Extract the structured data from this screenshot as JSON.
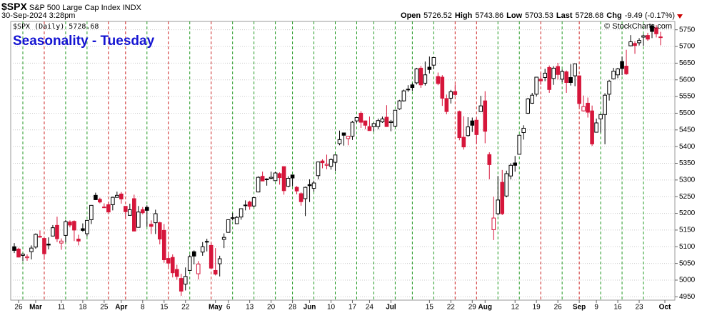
{
  "header": {
    "symbol": "$SPX",
    "description": "S&P 500 Large Cap Index",
    "exchange": "INDX",
    "timestamp": "30-Sep-2024 3:28pm",
    "stats": [
      {
        "label": "Open",
        "value": "5726.52"
      },
      {
        "label": "High",
        "value": "5743.86"
      },
      {
        "label": "Low",
        "value": "5703.53"
      },
      {
        "label": "Last",
        "value": "5728.68"
      },
      {
        "label": "Chg",
        "value": "-9.49 (-0.17%)"
      }
    ],
    "credit": "© StockCharts.com"
  },
  "chart_data": {
    "type": "candlestick",
    "title": "Seasonality - Tuesday",
    "legend": "$SPX (Daily) 5728.68",
    "up_color": "#000000",
    "down_color": "#d6163b",
    "tuesday_up_color": "#229922",
    "tuesday_down_color": "#cc2222",
    "x": [
      "2024-02-23",
      "2024-02-26",
      "2024-02-27",
      "2024-02-28",
      "2024-02-29",
      "2024-03-01",
      "2024-03-04",
      "2024-03-05",
      "2024-03-06",
      "2024-03-07",
      "2024-03-08",
      "2024-03-11",
      "2024-03-12",
      "2024-03-13",
      "2024-03-14",
      "2024-03-15",
      "2024-03-18",
      "2024-03-19",
      "2024-03-20",
      "2024-03-21",
      "2024-03-22",
      "2024-03-25",
      "2024-03-26",
      "2024-03-27",
      "2024-03-28",
      "2024-04-01",
      "2024-04-02",
      "2024-04-03",
      "2024-04-04",
      "2024-04-05",
      "2024-04-08",
      "2024-04-09",
      "2024-04-10",
      "2024-04-11",
      "2024-04-12",
      "2024-04-15",
      "2024-04-16",
      "2024-04-17",
      "2024-04-18",
      "2024-04-19",
      "2024-04-22",
      "2024-04-23",
      "2024-04-24",
      "2024-04-25",
      "2024-04-26",
      "2024-04-29",
      "2024-04-30",
      "2024-05-01",
      "2024-05-02",
      "2024-05-03",
      "2024-05-06",
      "2024-05-07",
      "2024-05-08",
      "2024-05-09",
      "2024-05-10",
      "2024-05-13",
      "2024-05-14",
      "2024-05-15",
      "2024-05-16",
      "2024-05-17",
      "2024-05-20",
      "2024-05-21",
      "2024-05-22",
      "2024-05-23",
      "2024-05-24",
      "2024-05-28",
      "2024-05-29",
      "2024-05-30",
      "2024-05-31",
      "2024-06-03",
      "2024-06-04",
      "2024-06-05",
      "2024-06-06",
      "2024-06-07",
      "2024-06-10",
      "2024-06-11",
      "2024-06-12",
      "2024-06-13",
      "2024-06-14",
      "2024-06-17",
      "2024-06-18",
      "2024-06-20",
      "2024-06-21",
      "2024-06-24",
      "2024-06-25",
      "2024-06-26",
      "2024-06-27",
      "2024-06-28",
      "2024-07-01",
      "2024-07-02",
      "2024-07-03",
      "2024-07-05",
      "2024-07-08",
      "2024-07-09",
      "2024-07-10",
      "2024-07-11",
      "2024-07-12",
      "2024-07-15",
      "2024-07-16",
      "2024-07-17",
      "2024-07-18",
      "2024-07-19",
      "2024-07-22",
      "2024-07-23",
      "2024-07-24",
      "2024-07-25",
      "2024-07-26",
      "2024-07-29",
      "2024-07-30",
      "2024-07-31",
      "2024-08-01",
      "2024-08-02",
      "2024-08-05",
      "2024-08-06",
      "2024-08-07",
      "2024-08-08",
      "2024-08-09",
      "2024-08-12",
      "2024-08-13",
      "2024-08-14",
      "2024-08-15",
      "2024-08-16",
      "2024-08-19",
      "2024-08-20",
      "2024-08-21",
      "2024-08-22",
      "2024-08-23",
      "2024-08-26",
      "2024-08-27",
      "2024-08-28",
      "2024-08-29",
      "2024-08-30",
      "2024-09-03",
      "2024-09-04",
      "2024-09-05",
      "2024-09-06",
      "2024-09-09",
      "2024-09-10",
      "2024-09-11",
      "2024-09-12",
      "2024-09-13",
      "2024-09-16",
      "2024-09-17",
      "2024-09-18",
      "2024-09-19",
      "2024-09-20",
      "2024-09-23",
      "2024-09-24",
      "2024-09-25",
      "2024-09-26",
      "2024-09-27",
      "2024-09-30"
    ],
    "open": [
      5100,
      5093,
      5074,
      5067,
      5085,
      5099,
      5131,
      5125,
      5108,
      5132,
      5164,
      5111,
      5134,
      5174,
      5176,
      5123,
      5154,
      5139,
      5181,
      5254,
      5242,
      5219,
      5226,
      5226,
      5248,
      5258,
      5221,
      5194,
      5244,
      5158,
      5211,
      5218,
      5167,
      5172,
      5172,
      5149,
      5065,
      5068,
      5032,
      5005,
      4988,
      5029,
      5085,
      5019,
      5084,
      5114,
      5104,
      5029,
      5049,
      5122,
      5143,
      5187,
      5169,
      5189,
      5225,
      5234,
      5222,
      5264,
      5311,
      5303,
      5305,
      5298,
      5319,
      5340,
      5281,
      5315,
      5278,
      5259,
      5244,
      5286,
      5275,
      5313,
      5357,
      5344,
      5341,
      5353,
      5409,
      5441,
      5424,
      5431,
      5477,
      5500,
      5477,
      5460,
      5460,
      5460,
      5474,
      5488,
      5472,
      5461,
      5513,
      5537,
      5572,
      5585,
      5591,
      5635,
      5590,
      5638,
      5644,
      5610,
      5608,
      5544,
      5545,
      5565,
      5505,
      5428,
      5433,
      5477,
      5479,
      5505,
      5537,
      5376,
      5151,
      5199,
      5293,
      5252,
      5312,
      5351,
      5377,
      5442,
      5500,
      5530,
      5557,
      5602,
      5607,
      5637,
      5604,
      5640,
      5602,
      5624,
      5607,
      5612,
      5612,
      5507,
      5530,
      5507,
      5443,
      5483,
      5496,
      5557,
      5603,
      5615,
      5655,
      5641,
      5702,
      5709,
      5711,
      5728,
      5733,
      5762,
      5756,
      5726.52
    ],
    "high": [
      5111,
      5097,
      5080,
      5077,
      5104,
      5140,
      5149,
      5127,
      5128,
      5165,
      5190,
      5125,
      5180,
      5179,
      5179,
      5136,
      5170,
      5180,
      5225,
      5262,
      5247,
      5230,
      5235,
      5250,
      5265,
      5264,
      5221,
      5229,
      5256,
      5222,
      5219,
      5224,
      5179,
      5211,
      5175,
      5168,
      5077,
      5077,
      5046,
      5019,
      5038,
      5076,
      5089,
      5057,
      5114,
      5124,
      5111,
      5096,
      5073,
      5140,
      5181,
      5201,
      5192,
      5215,
      5239,
      5238,
      5250,
      5311,
      5325,
      5305,
      5325,
      5324,
      5323,
      5341,
      5311,
      5315,
      5282,
      5263,
      5280,
      5302,
      5298,
      5354,
      5362,
      5376,
      5365,
      5376,
      5448,
      5442,
      5432,
      5477,
      5489,
      5506,
      5478,
      5490,
      5472,
      5484,
      5490,
      5524,
      5480,
      5509,
      5540,
      5571,
      5584,
      5590,
      5636,
      5642,
      5655,
      5670,
      5667,
      5622,
      5614,
      5556,
      5570,
      5586,
      5508,
      5491,
      5488,
      5487,
      5487,
      5552,
      5566,
      5383,
      5250,
      5312,
      5330,
      5328,
      5350,
      5372,
      5436,
      5464,
      5546,
      5561,
      5608,
      5620,
      5633,
      5643,
      5641,
      5651,
      5631,
      5628,
      5647,
      5648,
      5613,
      5553,
      5547,
      5523,
      5484,
      5497,
      5560,
      5600,
      5636,
      5636,
      5670,
      5690,
      5734,
      5716,
      5725,
      5736,
      5741,
      5767,
      5764,
      5743.86
    ],
    "low": [
      5081,
      5068,
      5057,
      5058,
      5062,
      5094,
      5127,
      5061,
      5092,
      5131,
      5114,
      5091,
      5113,
      5158,
      5117,
      5104,
      5145,
      5131,
      5168,
      5240,
      5230,
      5216,
      5203,
      5209,
      5247,
      5229,
      5185,
      5194,
      5146,
      5157,
      5197,
      5160,
      5138,
      5138,
      5107,
      5052,
      5039,
      5008,
      5001,
      4953,
      4969,
      5027,
      5047,
      5002,
      5073,
      5086,
      5035,
      5014,
      5011,
      5096,
      5143,
      5179,
      5168,
      5181,
      5209,
      5211,
      5218,
      5263,
      5297,
      5283,
      5302,
      5297,
      5286,
      5256,
      5278,
      5281,
      5257,
      5223,
      5192,
      5234,
      5265,
      5302,
      5335,
      5332,
      5331,
      5327,
      5404,
      5403,
      5404,
      5420,
      5471,
      5456,
      5452,
      5448,
      5445,
      5452,
      5471,
      5459,
      5446,
      5458,
      5510,
      5535,
      5564,
      5567,
      5586,
      5576,
      5583,
      5619,
      5632,
      5584,
      5522,
      5497,
      5529,
      5552,
      5419,
      5391,
      5430,
      5444,
      5409,
      5505,
      5410,
      5302,
      5120,
      5194,
      5195,
      5248,
      5302,
      5325,
      5377,
      5421,
      5498,
      5528,
      5550,
      5585,
      5596,
      5561,
      5585,
      5601,
      5593,
      5561,
      5583,
      5581,
      5518,
      5505,
      5487,
      5402,
      5443,
      5442,
      5407,
      5538,
      5601,
      5605,
      5614,
      5615,
      5702,
      5678,
      5703,
      5702,
      5717,
      5725,
      5727,
      5703.53
    ],
    "close": [
      5089,
      5069,
      5078,
      5070,
      5096,
      5137,
      5130,
      5079,
      5105,
      5157,
      5124,
      5117,
      5175,
      5165,
      5150,
      5117,
      5149,
      5179,
      5224,
      5241,
      5234,
      5218,
      5204,
      5248,
      5254,
      5243,
      5205,
      5211,
      5147,
      5204,
      5202,
      5209,
      5161,
      5199,
      5123,
      5061,
      5051,
      5022,
      5011,
      4967,
      5011,
      5070,
      5072,
      5048,
      5100,
      5116,
      5036,
      5018,
      5064,
      5128,
      5181,
      5187,
      5188,
      5214,
      5223,
      5221,
      5247,
      5308,
      5297,
      5303,
      5308,
      5321,
      5307,
      5268,
      5305,
      5306,
      5267,
      5235,
      5278,
      5283,
      5291,
      5354,
      5352,
      5347,
      5361,
      5375,
      5421,
      5434,
      5431,
      5473,
      5487,
      5473,
      5464,
      5448,
      5469,
      5478,
      5483,
      5460,
      5475,
      5509,
      5537,
      5567,
      5572,
      5577,
      5633,
      5585,
      5615,
      5631,
      5667,
      5589,
      5545,
      5505,
      5564,
      5556,
      5427,
      5399,
      5459,
      5464,
      5436,
      5522,
      5446,
      5346,
      5186,
      5240,
      5199,
      5319,
      5344,
      5344,
      5434,
      5455,
      5543,
      5554,
      5608,
      5597,
      5620,
      5571,
      5635,
      5616,
      5625,
      5592,
      5592,
      5648,
      5529,
      5520,
      5503,
      5408,
      5471,
      5496,
      5554,
      5596,
      5626,
      5633,
      5634,
      5618,
      5714,
      5703,
      5718,
      5732,
      5722,
      5745,
      5738,
      5728.68
    ],
    "xticks": [
      {
        "value": "2024-02-26",
        "label": "26"
      },
      {
        "value": "2024-03-01",
        "label": "Mar"
      },
      {
        "value": "2024-03-11",
        "label": "11"
      },
      {
        "value": "2024-03-18",
        "label": "18"
      },
      {
        "value": "2024-03-25",
        "label": "25"
      },
      {
        "value": "2024-04-01",
        "label": "Apr"
      },
      {
        "value": "2024-04-08",
        "label": "8"
      },
      {
        "value": "2024-04-15",
        "label": "15"
      },
      {
        "value": "2024-04-22",
        "label": "22"
      },
      {
        "value": "2024-05-01",
        "label": "May"
      },
      {
        "value": "2024-05-06",
        "label": "6"
      },
      {
        "value": "2024-05-13",
        "label": "13"
      },
      {
        "value": "2024-05-20",
        "label": "20"
      },
      {
        "value": "2024-05-28",
        "label": "28"
      },
      {
        "value": "2024-06-03",
        "label": "Jun"
      },
      {
        "value": "2024-06-10",
        "label": "10"
      },
      {
        "value": "2024-06-17",
        "label": "17"
      },
      {
        "value": "2024-06-24",
        "label": "24"
      },
      {
        "value": "2024-07-01",
        "label": "Jul"
      },
      {
        "value": "2024-07-15",
        "label": "15"
      },
      {
        "value": "2024-07-22",
        "label": "22"
      },
      {
        "value": "2024-07-29",
        "label": "29"
      },
      {
        "value": "2024-08-01",
        "label": "Aug"
      },
      {
        "value": "2024-08-12",
        "label": "12"
      },
      {
        "value": "2024-08-19",
        "label": "19"
      },
      {
        "value": "2024-08-26",
        "label": "26"
      },
      {
        "value": "2024-09-03",
        "label": "Sep"
      },
      {
        "value": "2024-09-09",
        "label": "9"
      },
      {
        "value": "2024-09-16",
        "label": "16"
      },
      {
        "value": "2024-09-23",
        "label": "23"
      },
      {
        "value": "2024-10-01",
        "label": "Oct"
      }
    ],
    "ylim": [
      4940,
      5775
    ],
    "yticks": [
      4950,
      5000,
      5050,
      5100,
      5150,
      5200,
      5250,
      5300,
      5350,
      5400,
      5450,
      5500,
      5550,
      5600,
      5650,
      5700,
      5750
    ],
    "grid": true
  }
}
